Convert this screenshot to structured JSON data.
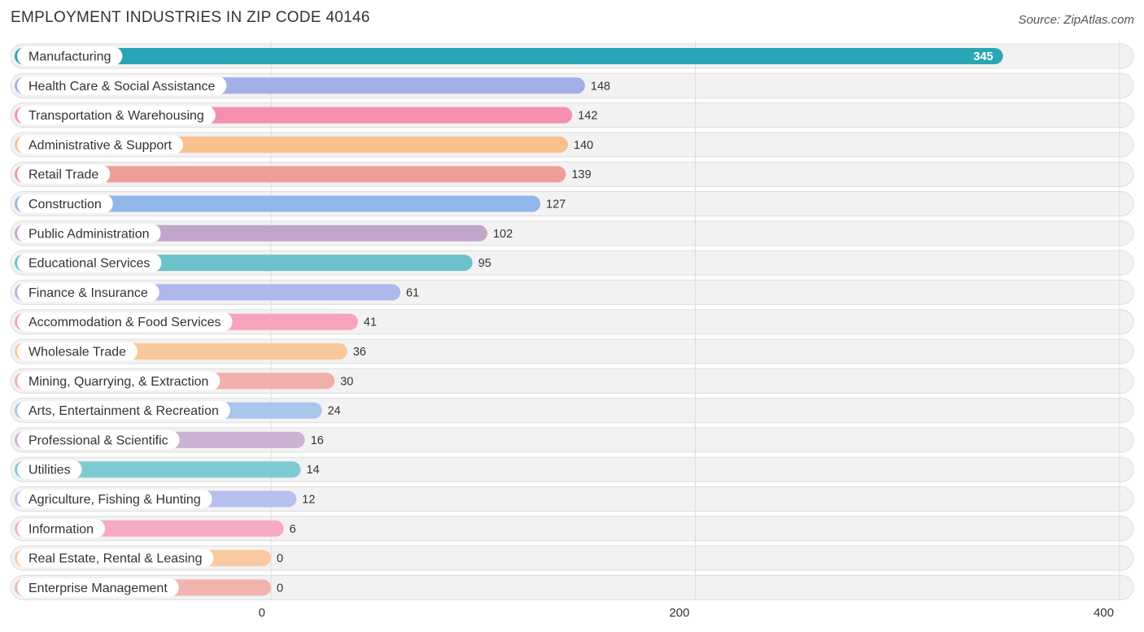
{
  "header": {
    "title": "EMPLOYMENT INDUSTRIES IN ZIP CODE 40146",
    "source": "Source: ZipAtlas.com"
  },
  "chart_data": {
    "type": "bar",
    "orientation": "horizontal",
    "categories": [
      "Manufacturing",
      "Health Care & Social Assistance",
      "Transportation & Warehousing",
      "Administrative & Support",
      "Retail Trade",
      "Construction",
      "Public Administration",
      "Educational Services",
      "Finance & Insurance",
      "Accommodation & Food Services",
      "Wholesale Trade",
      "Mining, Quarrying, & Extraction",
      "Arts, Entertainment & Recreation",
      "Professional & Scientific",
      "Utilities",
      "Agriculture, Fishing & Hunting",
      "Information",
      "Real Estate, Rental & Leasing",
      "Enterprise Management"
    ],
    "values": [
      345,
      148,
      142,
      140,
      139,
      127,
      102,
      95,
      61,
      41,
      36,
      30,
      24,
      16,
      14,
      12,
      6,
      0,
      0
    ],
    "colors": [
      "#2aa5b5",
      "#a2aee6",
      "#f58fae",
      "#f9c08d",
      "#ee9e98",
      "#92b6ea",
      "#c3a5cb",
      "#6cc2cc",
      "#aeb8ea",
      "#f7a3bc",
      "#f9c898",
      "#f2aeaa",
      "#a8c5ec",
      "#cdb3d3",
      "#7dcbd2",
      "#b6bfee",
      "#f8aac3",
      "#f9c9a0",
      "#f2b3ae"
    ],
    "xticks": [
      0,
      200,
      400
    ],
    "xlim": [
      0,
      400
    ],
    "grid": true,
    "title": "EMPLOYMENT INDUSTRIES IN ZIP CODE 40146"
  }
}
